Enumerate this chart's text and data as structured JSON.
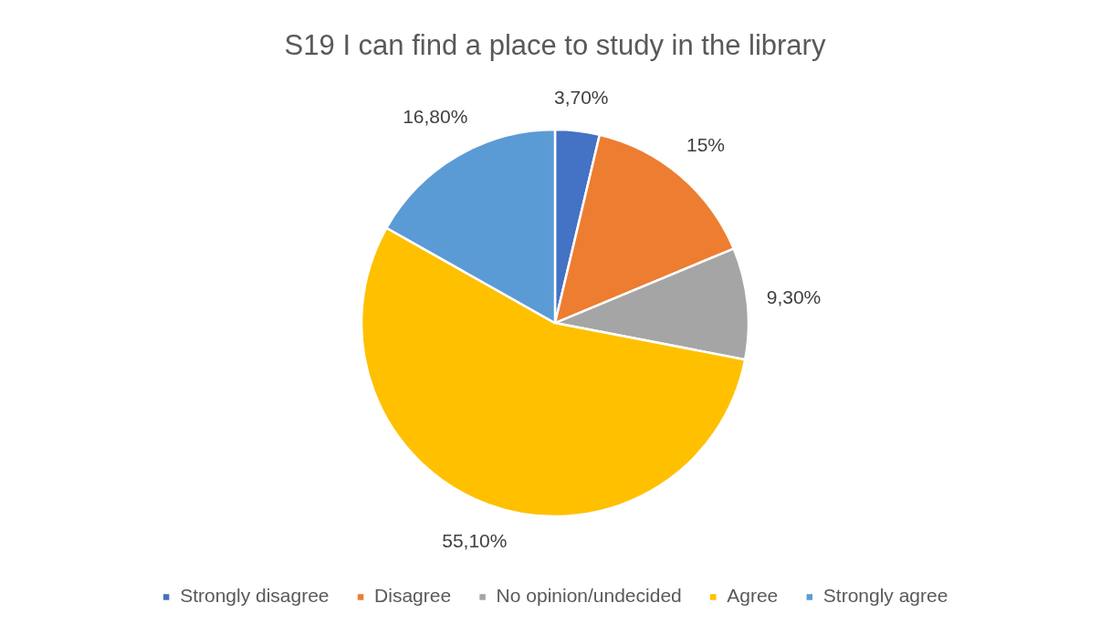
{
  "chart_data": {
    "type": "pie",
    "title": "S19 I can find a place to study in the library",
    "categories": [
      "Strongly disagree",
      "Disagree",
      "No opinion/undecided",
      "Agree",
      "Strongly agree"
    ],
    "values": [
      3.7,
      15,
      9.3,
      55.1,
      16.8
    ],
    "value_labels": [
      "3,70%",
      "15%",
      "9,30%",
      "55,10%",
      "16,80%"
    ],
    "colors": [
      "#4472c4",
      "#ed7d31",
      "#a5a5a5",
      "#ffc000",
      "#5b9bd5"
    ],
    "legend": "bottom"
  }
}
